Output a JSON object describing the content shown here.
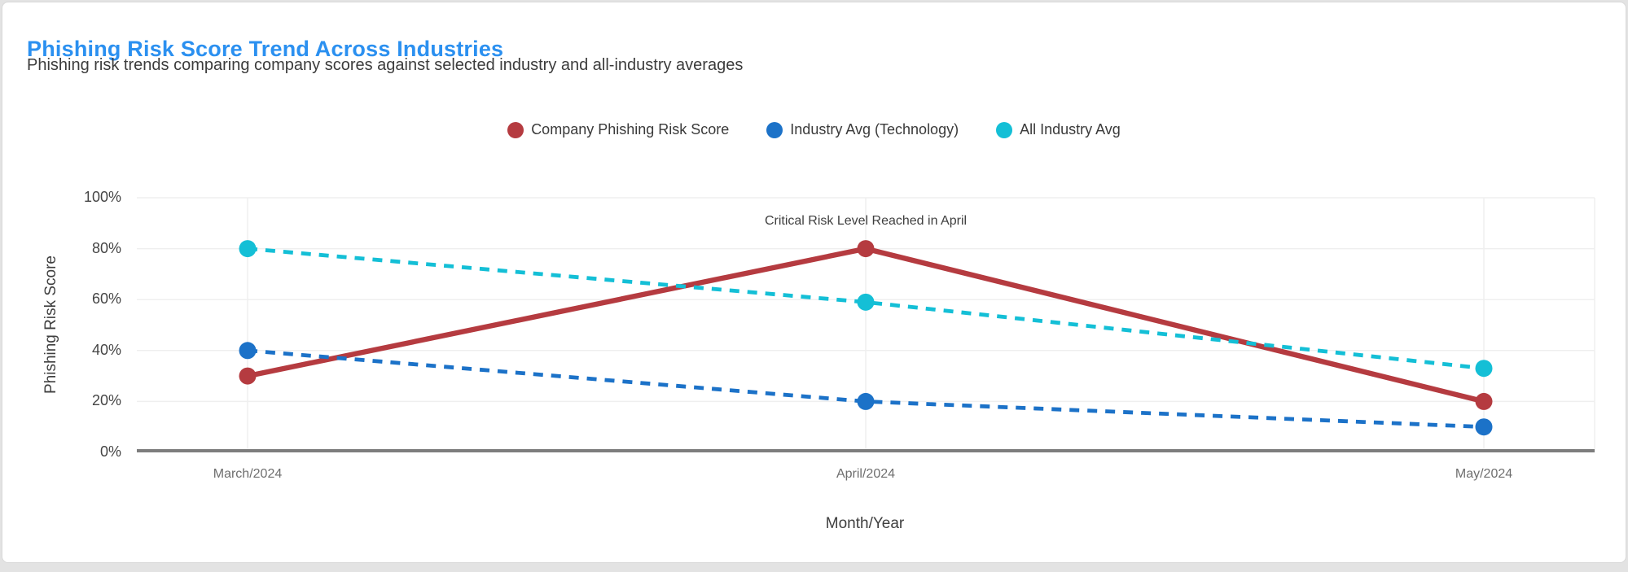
{
  "header": {
    "title": "Phishing Risk Score Trend Across Industries",
    "subtitle": "Phishing risk trends comparing company scores against selected industry and all-industry averages"
  },
  "colors": {
    "title": "#2b90f0",
    "company_series": "#b53b40",
    "industry_series": "#1c72c8",
    "all_industry_series": "#14bfd6",
    "gridline": "#efefef",
    "axis_line": "#7d7d7d"
  },
  "chart_data": {
    "type": "line",
    "title": "Phishing Risk Score Trend Across Industries",
    "xlabel": "Month/Year",
    "ylabel": "Phishing Risk Score",
    "ylim": [
      0,
      100
    ],
    "grid": true,
    "legend_position": "top",
    "categories": [
      "March/2024",
      "April/2024",
      "May/2024"
    ],
    "yticks": [
      {
        "label": "0%",
        "value": 0
      },
      {
        "label": "20%",
        "value": 20
      },
      {
        "label": "40%",
        "value": 40
      },
      {
        "label": "60%",
        "value": 60
      },
      {
        "label": "80%",
        "value": 80
      },
      {
        "label": "100%",
        "value": 100
      }
    ],
    "series": [
      {
        "name": "Company Phishing Risk Score",
        "color": "#b53b40",
        "style": "solid",
        "values": [
          30,
          80,
          20
        ]
      },
      {
        "name": "Industry Avg (Technology)",
        "color": "#1c72c8",
        "style": "dashed",
        "values": [
          40,
          20,
          10
        ]
      },
      {
        "name": "All Industry Avg",
        "color": "#14bfd6",
        "style": "dashed",
        "values": [
          80,
          59,
          33
        ]
      }
    ],
    "annotation": {
      "text": "Critical Risk Level Reached in April",
      "x_index": 1,
      "y": 80
    }
  }
}
